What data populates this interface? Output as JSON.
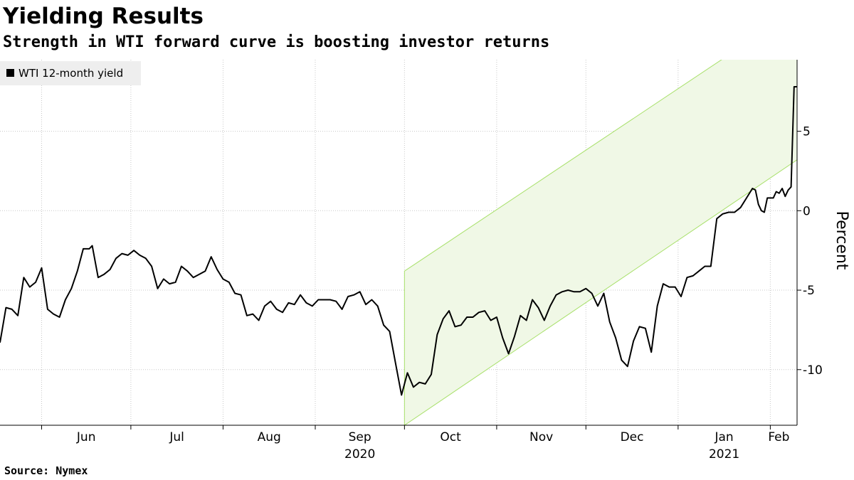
{
  "title": "Yielding Results",
  "subtitle": "Strength in WTI forward curve is boosting investor returns",
  "source": "Source: Nymex",
  "colors": {
    "line": "#000000",
    "band_fill": "#f0f8e6",
    "band_edge": "#a8e06a",
    "grid": "#c8c8c8"
  },
  "chart_data": {
    "type": "line",
    "title": "Yielding Results",
    "subtitle": "Strength in WTI forward curve is boosting investor returns",
    "ylabel": "Percent",
    "ylim": [
      -13.5,
      9.5
    ],
    "xlim": [
      "2020-05-18",
      "2021-02-10"
    ],
    "grid": "dotted vertical at months, dotted horizontal at y ticks",
    "legend": "top-left",
    "y_ticks": [
      5,
      0,
      -5,
      -10
    ],
    "y_tick_labels": [
      "5",
      "0",
      "-5",
      "-10"
    ],
    "x_ticks": [
      {
        "date": "2020-06-01",
        "label": "Jun"
      },
      {
        "date": "2020-07-01",
        "label": "Jul"
      },
      {
        "date": "2020-08-01",
        "label": "Aug"
      },
      {
        "date": "2020-09-01",
        "label": "Sep"
      },
      {
        "date": "2020-10-01",
        "label": "Oct"
      },
      {
        "date": "2020-11-01",
        "label": "Nov"
      },
      {
        "date": "2020-12-01",
        "label": "Dec"
      },
      {
        "date": "2021-01-01",
        "label": "Jan"
      },
      {
        "date": "2021-02-01",
        "label": "Feb"
      }
    ],
    "year_labels": [
      {
        "date": "2020-09-01",
        "label": "2020"
      },
      {
        "date": "2021-01-01",
        "label": "2021"
      }
    ],
    "trend_channel": {
      "upper": [
        {
          "x": "2020-10-01",
          "y": -3.8
        },
        {
          "x": "2021-01-18",
          "y": 9.8
        }
      ],
      "lower": [
        {
          "x": "2020-10-01",
          "y": -13.5
        },
        {
          "x": "2021-02-10",
          "y": 3.2
        }
      ]
    },
    "series": [
      {
        "name": "WTI 12-month yield",
        "points": [
          [
            "2020-05-18",
            -8.3
          ],
          [
            "2020-05-20",
            -6.1
          ],
          [
            "2020-05-22",
            -6.2
          ],
          [
            "2020-05-24",
            -6.6
          ],
          [
            "2020-05-26",
            -4.2
          ],
          [
            "2020-05-28",
            -4.8
          ],
          [
            "2020-05-30",
            -4.5
          ],
          [
            "2020-06-01",
            -3.6
          ],
          [
            "2020-06-03",
            -6.2
          ],
          [
            "2020-06-05",
            -6.5
          ],
          [
            "2020-06-07",
            -6.7
          ],
          [
            "2020-06-09",
            -5.6
          ],
          [
            "2020-06-11",
            -4.9
          ],
          [
            "2020-06-13",
            -3.8
          ],
          [
            "2020-06-15",
            -2.4
          ],
          [
            "2020-06-17",
            -2.4
          ],
          [
            "2020-06-18",
            -2.2
          ],
          [
            "2020-06-20",
            -4.2
          ],
          [
            "2020-06-22",
            -4.0
          ],
          [
            "2020-06-24",
            -3.7
          ],
          [
            "2020-06-26",
            -3.0
          ],
          [
            "2020-06-28",
            -2.7
          ],
          [
            "2020-06-30",
            -2.8
          ],
          [
            "2020-07-02",
            -2.5
          ],
          [
            "2020-07-04",
            -2.8
          ],
          [
            "2020-07-06",
            -3.0
          ],
          [
            "2020-07-08",
            -3.5
          ],
          [
            "2020-07-10",
            -4.9
          ],
          [
            "2020-07-12",
            -4.3
          ],
          [
            "2020-07-14",
            -4.6
          ],
          [
            "2020-07-16",
            -4.5
          ],
          [
            "2020-07-18",
            -3.5
          ],
          [
            "2020-07-20",
            -3.8
          ],
          [
            "2020-07-22",
            -4.2
          ],
          [
            "2020-07-24",
            -4.0
          ],
          [
            "2020-07-26",
            -3.8
          ],
          [
            "2020-07-28",
            -2.9
          ],
          [
            "2020-07-30",
            -3.7
          ],
          [
            "2020-08-01",
            -4.3
          ],
          [
            "2020-08-03",
            -4.5
          ],
          [
            "2020-08-05",
            -5.2
          ],
          [
            "2020-08-07",
            -5.3
          ],
          [
            "2020-08-09",
            -6.6
          ],
          [
            "2020-08-11",
            -6.5
          ],
          [
            "2020-08-13",
            -6.9
          ],
          [
            "2020-08-15",
            -6.0
          ],
          [
            "2020-08-17",
            -5.7
          ],
          [
            "2020-08-19",
            -6.2
          ],
          [
            "2020-08-21",
            -6.4
          ],
          [
            "2020-08-23",
            -5.8
          ],
          [
            "2020-08-25",
            -5.9
          ],
          [
            "2020-08-27",
            -5.3
          ],
          [
            "2020-08-29",
            -5.8
          ],
          [
            "2020-08-31",
            -6.0
          ],
          [
            "2020-09-02",
            -5.6
          ],
          [
            "2020-09-04",
            -5.6
          ],
          [
            "2020-09-06",
            -5.6
          ],
          [
            "2020-09-08",
            -5.7
          ],
          [
            "2020-09-10",
            -6.2
          ],
          [
            "2020-09-12",
            -5.4
          ],
          [
            "2020-09-14",
            -5.3
          ],
          [
            "2020-09-16",
            -5.1
          ],
          [
            "2020-09-18",
            -5.9
          ],
          [
            "2020-09-20",
            -5.6
          ],
          [
            "2020-09-22",
            -6.0
          ],
          [
            "2020-09-24",
            -7.2
          ],
          [
            "2020-09-26",
            -7.6
          ],
          [
            "2020-09-28",
            -9.6
          ],
          [
            "2020-09-30",
            -11.6
          ],
          [
            "2020-10-02",
            -10.2
          ],
          [
            "2020-10-04",
            -11.1
          ],
          [
            "2020-10-06",
            -10.8
          ],
          [
            "2020-10-08",
            -10.9
          ],
          [
            "2020-10-10",
            -10.3
          ],
          [
            "2020-10-12",
            -7.8
          ],
          [
            "2020-10-14",
            -6.8
          ],
          [
            "2020-10-16",
            -6.3
          ],
          [
            "2020-10-18",
            -7.3
          ],
          [
            "2020-10-20",
            -7.2
          ],
          [
            "2020-10-22",
            -6.7
          ],
          [
            "2020-10-24",
            -6.7
          ],
          [
            "2020-10-26",
            -6.4
          ],
          [
            "2020-10-28",
            -6.3
          ],
          [
            "2020-10-30",
            -6.9
          ],
          [
            "2020-11-01",
            -6.7
          ],
          [
            "2020-11-03",
            -8.0
          ],
          [
            "2020-11-05",
            -9.0
          ],
          [
            "2020-11-07",
            -7.9
          ],
          [
            "2020-11-09",
            -6.6
          ],
          [
            "2020-11-11",
            -6.9
          ],
          [
            "2020-11-13",
            -5.6
          ],
          [
            "2020-11-15",
            -6.1
          ],
          [
            "2020-11-17",
            -6.9
          ],
          [
            "2020-11-19",
            -6.0
          ],
          [
            "2020-11-21",
            -5.3
          ],
          [
            "2020-11-23",
            -5.1
          ],
          [
            "2020-11-25",
            -5.0
          ],
          [
            "2020-11-27",
            -5.1
          ],
          [
            "2020-11-29",
            -5.1
          ],
          [
            "2020-12-01",
            -4.9
          ],
          [
            "2020-12-03",
            -5.2
          ],
          [
            "2020-12-05",
            -6.0
          ],
          [
            "2020-12-07",
            -5.2
          ],
          [
            "2020-12-09",
            -7.0
          ],
          [
            "2020-12-11",
            -8.0
          ],
          [
            "2020-12-13",
            -9.4
          ],
          [
            "2020-12-15",
            -9.8
          ],
          [
            "2020-12-17",
            -8.2
          ],
          [
            "2020-12-19",
            -7.3
          ],
          [
            "2020-12-21",
            -7.4
          ],
          [
            "2020-12-23",
            -8.9
          ],
          [
            "2020-12-25",
            -6.0
          ],
          [
            "2020-12-27",
            -4.6
          ],
          [
            "2020-12-29",
            -4.8
          ],
          [
            "2020-12-31",
            -4.8
          ],
          [
            "2021-01-02",
            -5.4
          ],
          [
            "2021-01-04",
            -4.2
          ],
          [
            "2021-01-06",
            -4.1
          ],
          [
            "2021-01-08",
            -3.8
          ],
          [
            "2021-01-10",
            -3.5
          ],
          [
            "2021-01-12",
            -3.5
          ],
          [
            "2021-01-14",
            -0.5
          ],
          [
            "2021-01-16",
            -0.2
          ],
          [
            "2021-01-18",
            -0.1
          ],
          [
            "2021-01-20",
            -0.1
          ],
          [
            "2021-01-22",
            0.2
          ],
          [
            "2021-01-24",
            0.8
          ],
          [
            "2021-01-26",
            1.4
          ],
          [
            "2021-01-27",
            1.3
          ],
          [
            "2021-01-28",
            0.4
          ],
          [
            "2021-01-29",
            0.0
          ],
          [
            "2021-01-30",
            -0.1
          ],
          [
            "2021-01-31",
            0.8
          ],
          [
            "2021-02-01",
            0.8
          ],
          [
            "2021-02-02",
            0.8
          ],
          [
            "2021-02-03",
            1.2
          ],
          [
            "2021-02-04",
            1.1
          ],
          [
            "2021-02-05",
            1.4
          ],
          [
            "2021-02-06",
            0.9
          ],
          [
            "2021-02-07",
            1.3
          ],
          [
            "2021-02-08",
            1.5
          ],
          [
            "2021-02-09",
            7.8
          ],
          [
            "2021-02-10",
            7.8
          ]
        ]
      }
    ]
  },
  "legend": {
    "label": "WTI 12-month yield"
  }
}
